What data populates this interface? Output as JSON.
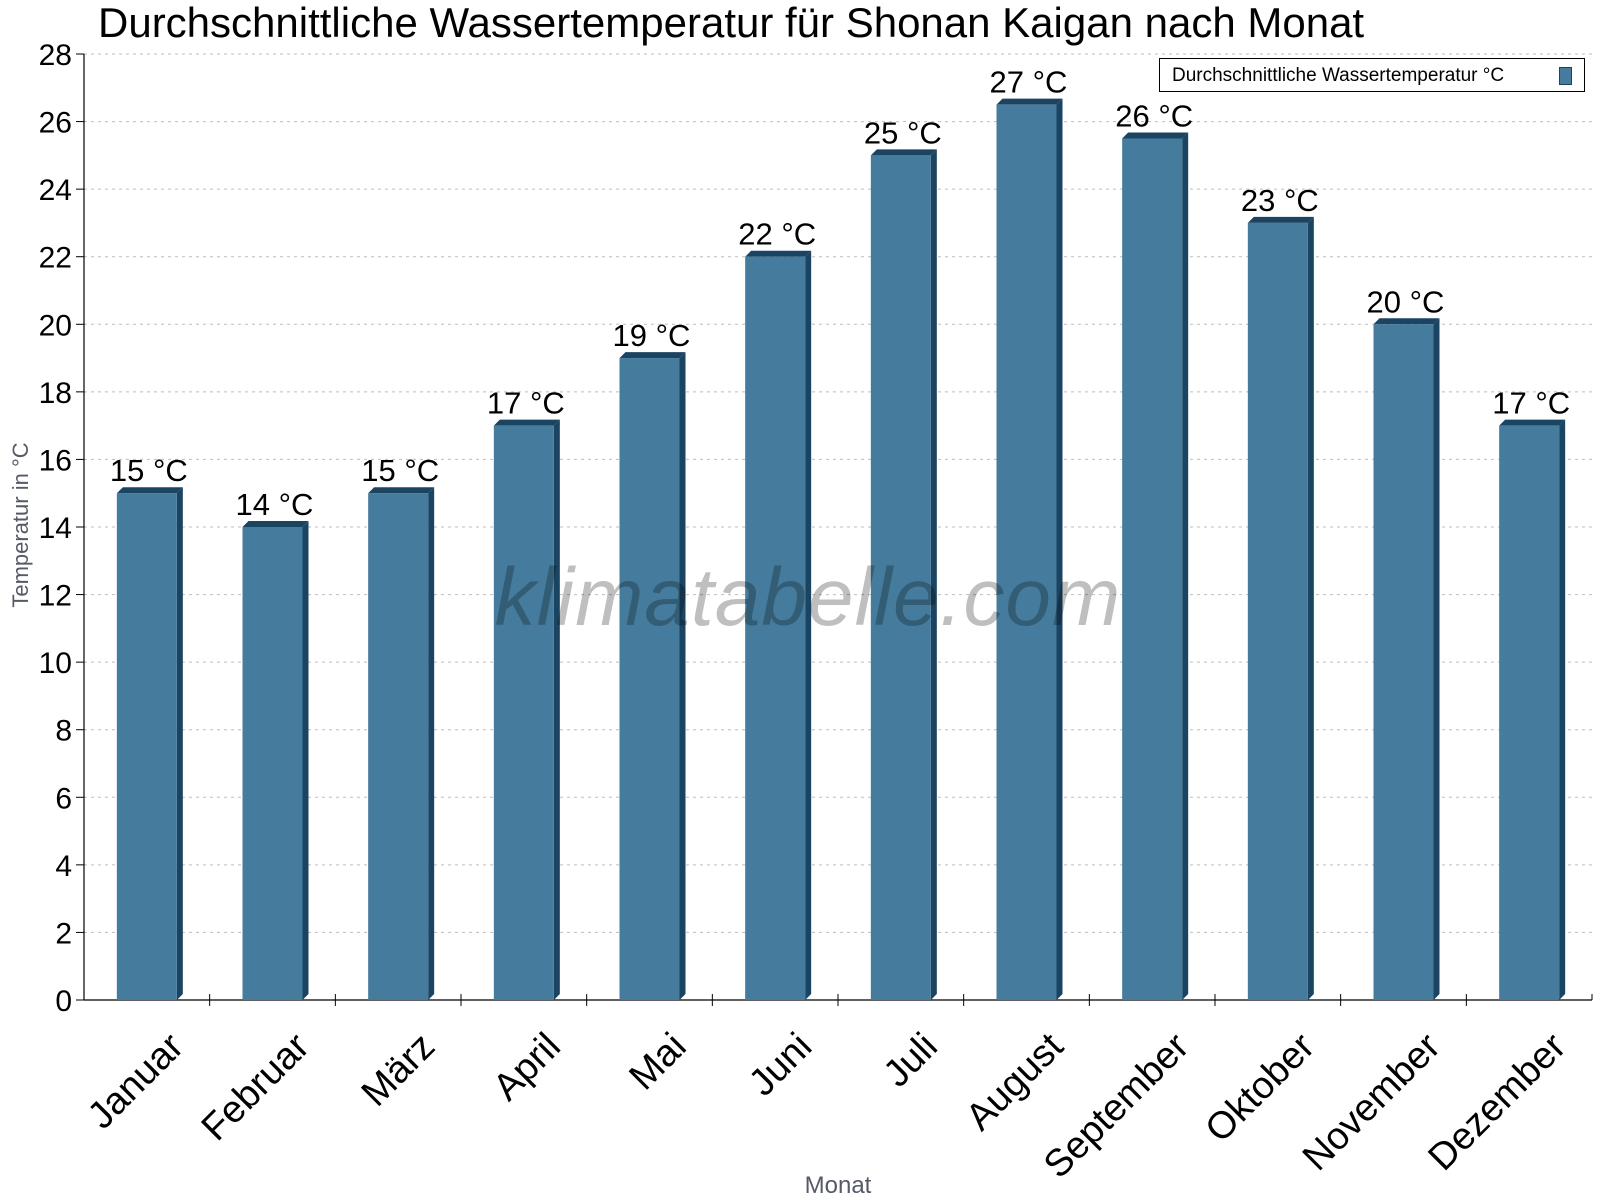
{
  "chart_data": {
    "type": "bar",
    "title": "Durchschnittliche Wassertemperatur für Shonan Kaigan nach Monat",
    "xlabel": "Monat",
    "ylabel": "Temperatur in °C",
    "ylim": [
      0,
      28
    ],
    "ytick_step": 2,
    "grid": true,
    "legend_position": "top-right",
    "categories": [
      "Januar",
      "Februar",
      "März",
      "April",
      "Mai",
      "Juni",
      "Juli",
      "August",
      "September",
      "Oktober",
      "November",
      "Dezember"
    ],
    "series": [
      {
        "name": "Durchschnittliche Wassertemperatur °C",
        "values": [
          15,
          14,
          15,
          17,
          19,
          22,
          25,
          26.5,
          25.5,
          23,
          20,
          17
        ],
        "labels": [
          "15 °C",
          "14 °C",
          "15 °C",
          "17 °C",
          "19 °C",
          "22 °C",
          "25 °C",
          "27 °C",
          "26 °C",
          "23 °C",
          "20 °C",
          "17 °C"
        ],
        "color": "#457b9d",
        "edge_color": "#1b4462"
      }
    ]
  },
  "watermark": "klimatabelle.com"
}
